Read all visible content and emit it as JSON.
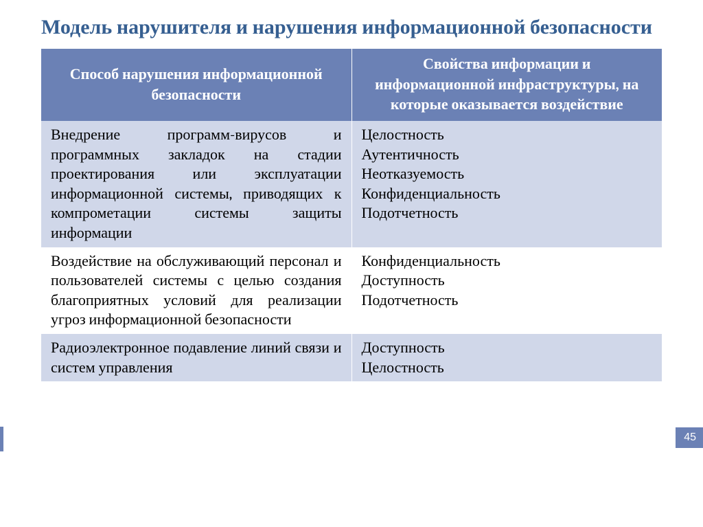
{
  "slide": {
    "title": "Модель нарушителя и нарушения информационной безопасности",
    "page_number": "45"
  },
  "table": {
    "header": {
      "col1": "Способ нарушения информационной безопасности",
      "col2": "Свойства информации и информационной инфраструктуры, на которые оказывается воздействие"
    },
    "rows": [
      {
        "col1": "Внедрение программ-вирусов и программных закладок на стадии проектирования или эксплуатации информационной системы, приводящих к компрометации системы защиты информации",
        "col2": "Целостность\nАутентичность\nНеотказуемость\nКонфиденциальность\nПодотчетность"
      },
      {
        "col1": "Воздействие на обслуживающий персонал и пользователей системы с целью создания благоприятных условий для реализации угроз информационной безопасности",
        "col2": "Конфиденциальность\nДоступность\nПодотчетность"
      },
      {
        "col1": "Радиоэлектронное подавление линий связи и систем управления",
        "col2": "Доступность\nЦелостность"
      }
    ]
  },
  "styling": {
    "title_color": "#365f91",
    "header_bg": "#6b81b5",
    "header_text_color": "#ffffff",
    "row_light_bg": "#d0d7e9",
    "row_white_bg": "#ffffff",
    "text_color": "#000000",
    "badge_bg": "#6b81b5",
    "title_fontsize": 30,
    "cell_fontsize": 22
  }
}
